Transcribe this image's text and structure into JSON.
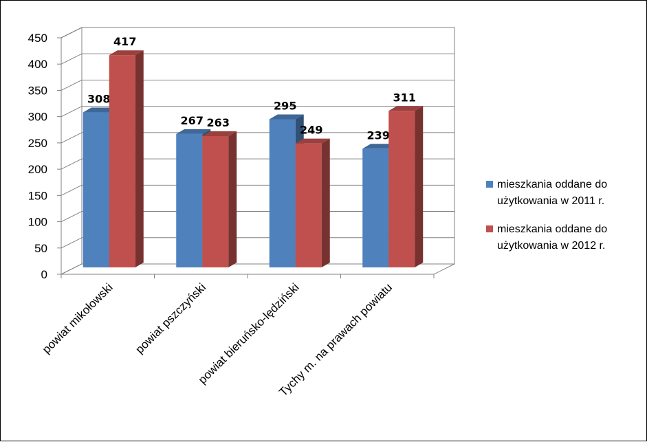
{
  "chart_data": {
    "type": "bar",
    "title": "",
    "xlabel": "",
    "ylabel": "",
    "ylim": [
      0,
      450
    ],
    "ytick_step": 50,
    "yticks": [
      "0",
      "50",
      "100",
      "150",
      "200",
      "250",
      "300",
      "350",
      "400",
      "450"
    ],
    "grid": true,
    "legend_position": "right",
    "categories": [
      "powiat mikołowski",
      "powiat pszczyński",
      "powiat bieruńsko-lędziński",
      "Tychy m. na prawach powiatu"
    ],
    "series": [
      {
        "name": "mieszkania oddane do użytkowania w 2011 r.",
        "legend_lines": [
          "mieszkania oddane do",
          "użytkowania w 2011 r."
        ],
        "color": "#4f81bd",
        "values": [
          308,
          267,
          295,
          239
        ]
      },
      {
        "name": "mieszkania oddane do użytkowania w 2012 r.",
        "legend_lines": [
          "mieszkania oddane do",
          "użytkowania w 2012 r."
        ],
        "color": "#c0504d",
        "values": [
          417,
          263,
          249,
          311
        ]
      }
    ]
  }
}
